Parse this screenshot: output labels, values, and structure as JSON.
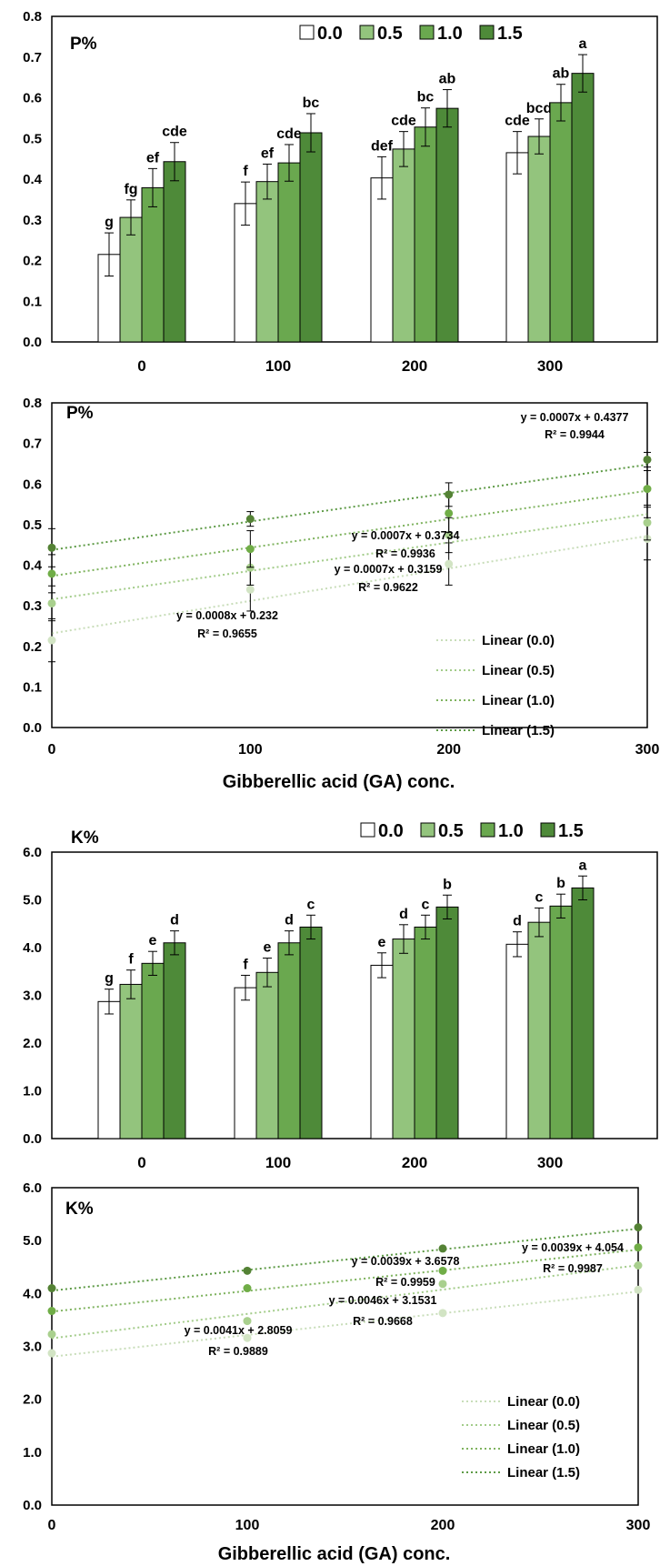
{
  "colors": {
    "series": [
      "#ffffff",
      "#93c47d",
      "#6aa84f",
      "#4e8a39"
    ],
    "trend": [
      "#c8ddb9",
      "#a3cc8a",
      "#7fb35f",
      "#5d9a45"
    ],
    "points": [
      "#d2e4c4",
      "#a9d08e",
      "#70ad47",
      "#548235"
    ],
    "axis": "#000000"
  },
  "chart_data": [
    {
      "type": "bar",
      "title": "P%",
      "categories": [
        "0",
        "100",
        "200",
        "300"
      ],
      "legend_position": "top",
      "series": [
        {
          "name": "0.0",
          "values": [
            0.215,
            0.34,
            0.403,
            0.465
          ],
          "errors": [
            0.053,
            0.053,
            0.052,
            0.052
          ],
          "letters": [
            "g",
            "f",
            "def",
            "cde"
          ]
        },
        {
          "name": "0.5",
          "values": [
            0.306,
            0.394,
            0.474,
            0.505
          ],
          "errors": [
            0.043,
            0.043,
            0.043,
            0.043
          ],
          "letters": [
            "fg",
            "ef",
            "cde",
            "bcd"
          ]
        },
        {
          "name": "1.0",
          "values": [
            0.379,
            0.44,
            0.528,
            0.588
          ],
          "errors": [
            0.047,
            0.045,
            0.047,
            0.045
          ],
          "letters": [
            "ef",
            "cde",
            "bc",
            "ab"
          ]
        },
        {
          "name": "1.5",
          "values": [
            0.443,
            0.514,
            0.574,
            0.66
          ],
          "errors": [
            0.047,
            0.047,
            0.046,
            0.046
          ],
          "letters": [
            "cde",
            "bc",
            "ab",
            "a"
          ]
        }
      ],
      "ylim": [
        0,
        0.8
      ],
      "yticks": [
        "0.0",
        "0.1",
        "0.2",
        "0.3",
        "0.4",
        "0.5",
        "0.6",
        "0.7",
        "0.8"
      ]
    },
    {
      "type": "scatter",
      "title": "P%",
      "xlabel": "Gibberellic acid (GA) conc.",
      "x": [
        0,
        100,
        200,
        300
      ],
      "xlim": [
        0,
        300
      ],
      "ylim": [
        0,
        0.8
      ],
      "xticks": [
        "0",
        "100",
        "200",
        "300"
      ],
      "yticks": [
        "0.0",
        "0.1",
        "0.2",
        "0.3",
        "0.4",
        "0.5",
        "0.6",
        "0.7",
        "0.8"
      ],
      "series": [
        {
          "values": [
            0.215,
            0.34,
            0.403,
            0.465
          ],
          "errors": [
            0.053,
            0.053,
            0.052,
            0.052
          ],
          "trend": [
            0.0008,
            0.232
          ]
        },
        {
          "values": [
            0.306,
            0.394,
            0.474,
            0.505
          ],
          "errors": [
            0.043,
            0.043,
            0.043,
            0.043
          ],
          "trend": [
            0.0007,
            0.3159
          ]
        },
        {
          "values": [
            0.379,
            0.44,
            0.528,
            0.588
          ],
          "errors": [
            0.047,
            0.045,
            0.047,
            0.045
          ],
          "trend": [
            0.0007,
            0.3734
          ]
        },
        {
          "values": [
            0.443,
            0.514,
            0.574,
            0.66
          ],
          "errors": [
            0.047,
            0.018,
            0.029,
            0.018
          ],
          "trend": [
            0.0007,
            0.4377
          ]
        }
      ],
      "legend": [
        "Linear (0.0)",
        "Linear (0.5)",
        "Linear (1.0)",
        "Linear (1.5)"
      ],
      "legend_position": "bottom-right",
      "annotations": [
        {
          "eq": "y = 0.0008x + 0.232",
          "r2": "R² = 0.9655"
        },
        {
          "eq": "y = 0.0007x + 0.3159",
          "r2": "R² = 0.9622"
        },
        {
          "eq": "y = 0.0007x + 0.3734",
          "r2": "R² = 0.9936"
        },
        {
          "eq": "y = 0.0007x + 0.4377",
          "r2": "R² = 0.9944"
        }
      ]
    },
    {
      "type": "bar",
      "title": "K%",
      "categories": [
        "0",
        "100",
        "200",
        "300"
      ],
      "legend_position": "top",
      "series": [
        {
          "name": "0.0",
          "values": [
            2.87,
            3.16,
            3.63,
            4.07
          ],
          "errors": [
            0.26,
            0.26,
            0.26,
            0.26
          ],
          "letters": [
            "g",
            "f",
            "e",
            "d"
          ]
        },
        {
          "name": "0.5",
          "values": [
            3.23,
            3.48,
            4.18,
            4.53
          ],
          "errors": [
            0.3,
            0.3,
            0.3,
            0.3
          ],
          "letters": [
            "f",
            "e",
            "d",
            "c"
          ]
        },
        {
          "name": "1.0",
          "values": [
            3.67,
            4.1,
            4.43,
            4.87
          ],
          "errors": [
            0.25,
            0.25,
            0.25,
            0.25
          ],
          "letters": [
            "e",
            "d",
            "c",
            "b"
          ]
        },
        {
          "name": "1.5",
          "values": [
            4.1,
            4.43,
            4.85,
            5.25
          ],
          "errors": [
            0.25,
            0.25,
            0.25,
            0.25
          ],
          "letters": [
            "d",
            "c",
            "b",
            "a"
          ]
        }
      ],
      "ylim": [
        0,
        6
      ],
      "yticks": [
        "0.0",
        "1.0",
        "2.0",
        "3.0",
        "4.0",
        "5.0",
        "6.0"
      ]
    },
    {
      "type": "scatter",
      "title": "K%",
      "xlabel": "Gibberellic acid (GA) conc.",
      "x": [
        0,
        100,
        200,
        300
      ],
      "xlim": [
        0,
        300
      ],
      "ylim": [
        0,
        6
      ],
      "xticks": [
        "0",
        "100",
        "200",
        "300"
      ],
      "yticks": [
        "0.0",
        "1.0",
        "2.0",
        "3.0",
        "4.0",
        "5.0",
        "6.0"
      ],
      "series": [
        {
          "values": [
            2.87,
            3.16,
            3.63,
            4.07
          ],
          "errors": [
            0,
            0,
            0,
            0
          ],
          "trend": [
            0.0041,
            2.8059
          ]
        },
        {
          "values": [
            3.23,
            3.48,
            4.18,
            4.53
          ],
          "errors": [
            0,
            0,
            0,
            0
          ],
          "trend": [
            0.0046,
            3.1531
          ]
        },
        {
          "values": [
            3.67,
            4.1,
            4.43,
            4.87
          ],
          "errors": [
            0,
            0,
            0,
            0
          ],
          "trend": [
            0.0039,
            3.6578
          ]
        },
        {
          "values": [
            4.1,
            4.43,
            4.85,
            5.25
          ],
          "errors": [
            0,
            0,
            0,
            0
          ],
          "trend": [
            0.0039,
            4.054
          ]
        }
      ],
      "legend": [
        "Linear (0.0)",
        "Linear (0.5)",
        "Linear (1.0)",
        "Linear (1.5)"
      ],
      "legend_position": "bottom-right",
      "annotations": [
        {
          "eq": "y = 0.0041x + 2.8059",
          "r2": "R² = 0.9889"
        },
        {
          "eq": "y = 0.0046x + 3.1531",
          "r2": "R² = 0.9668"
        },
        {
          "eq": "y = 0.0039x + 3.6578",
          "r2": "R² = 0.9959"
        },
        {
          "eq": "y = 0.0039x + 4.054",
          "r2": "R² = 0.9987"
        }
      ]
    }
  ]
}
